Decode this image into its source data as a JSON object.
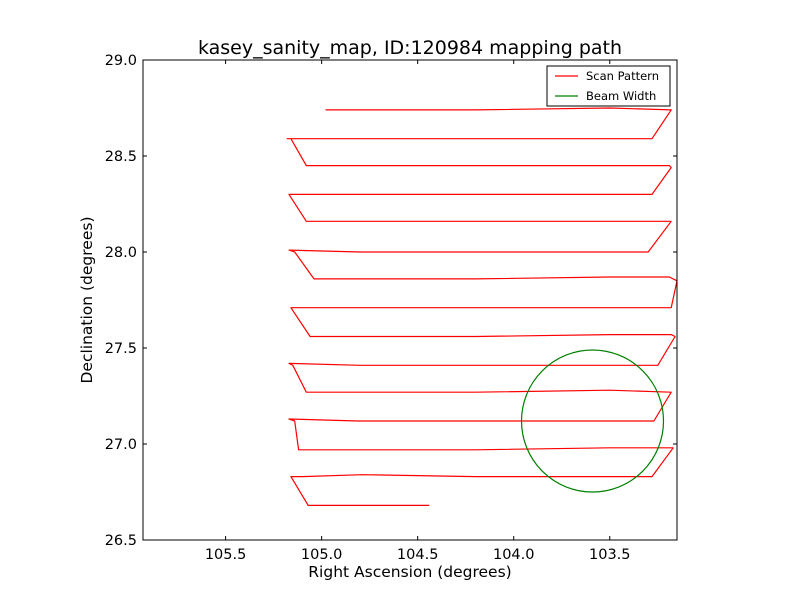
{
  "chart_data": {
    "type": "line",
    "title": "kasey_sanity_map, ID:120984 mapping path",
    "xlabel": "Right Ascension (degrees)",
    "ylabel": "Declination (degrees)",
    "xlim": [
      105.93,
      103.15
    ],
    "ylim": [
      26.5,
      29.0
    ],
    "x_inverted": true,
    "xticks": [
      105.5,
      105.0,
      104.5,
      104.0,
      103.5
    ],
    "xtick_labels": [
      "105.5",
      "105.0",
      "104.5",
      "104.0",
      "103.5"
    ],
    "yticks": [
      26.5,
      27.0,
      27.5,
      28.0,
      28.5,
      29.0
    ],
    "ytick_labels": [
      "26.5",
      "27.0",
      "27.5",
      "28.0",
      "28.5",
      "29.0"
    ],
    "grid": false,
    "legend_position": "top-right",
    "series": [
      {
        "name": "Scan Pattern",
        "color": "#ff0000",
        "points": [
          [
            104.44,
            26.68
          ],
          [
            104.8,
            26.68
          ],
          [
            105.07,
            26.68
          ],
          [
            105.16,
            26.83
          ],
          [
            105.1,
            26.83
          ],
          [
            104.79,
            26.84
          ],
          [
            104.2,
            26.83
          ],
          [
            103.51,
            26.83
          ],
          [
            103.28,
            26.83
          ],
          [
            103.17,
            26.98
          ],
          [
            103.5,
            26.98
          ],
          [
            104.2,
            26.97
          ],
          [
            105.12,
            26.97
          ],
          [
            105.14,
            27.12
          ],
          [
            105.17,
            27.13
          ],
          [
            104.81,
            27.12
          ],
          [
            104.2,
            27.12
          ],
          [
            103.5,
            27.12
          ],
          [
            103.27,
            27.12
          ],
          [
            103.18,
            27.27
          ],
          [
            103.5,
            27.28
          ],
          [
            104.2,
            27.27
          ],
          [
            105.08,
            27.27
          ],
          [
            105.15,
            27.41
          ],
          [
            105.17,
            27.42
          ],
          [
            104.8,
            27.41
          ],
          [
            104.2,
            27.41
          ],
          [
            103.5,
            27.41
          ],
          [
            103.25,
            27.41
          ],
          [
            103.16,
            27.56
          ],
          [
            103.18,
            27.57
          ],
          [
            103.5,
            27.57
          ],
          [
            104.2,
            27.56
          ],
          [
            105.06,
            27.56
          ],
          [
            105.16,
            27.71
          ],
          [
            104.8,
            27.71
          ],
          [
            104.2,
            27.71
          ],
          [
            103.5,
            27.71
          ],
          [
            103.18,
            27.71
          ],
          [
            103.15,
            27.85
          ],
          [
            103.19,
            27.87
          ],
          [
            103.5,
            27.87
          ],
          [
            104.2,
            27.86
          ],
          [
            105.04,
            27.86
          ],
          [
            105.14,
            28.0
          ],
          [
            105.17,
            28.01
          ],
          [
            104.8,
            28.0
          ],
          [
            104.2,
            28.0
          ],
          [
            103.5,
            28.0
          ],
          [
            103.3,
            28.0
          ],
          [
            103.18,
            28.16
          ],
          [
            103.5,
            28.16
          ],
          [
            104.2,
            28.16
          ],
          [
            105.08,
            28.16
          ],
          [
            105.17,
            28.3
          ],
          [
            104.8,
            28.3
          ],
          [
            104.2,
            28.3
          ],
          [
            103.5,
            28.3
          ],
          [
            103.28,
            28.3
          ],
          [
            103.18,
            28.44
          ],
          [
            103.19,
            28.45
          ],
          [
            103.5,
            28.45
          ],
          [
            104.2,
            28.45
          ],
          [
            105.08,
            28.45
          ],
          [
            105.16,
            28.59
          ],
          [
            105.18,
            28.59
          ],
          [
            104.8,
            28.59
          ],
          [
            104.2,
            28.59
          ],
          [
            103.5,
            28.59
          ],
          [
            103.28,
            28.59
          ],
          [
            103.18,
            28.74
          ],
          [
            103.5,
            28.75
          ],
          [
            104.2,
            28.74
          ],
          [
            104.98,
            28.74
          ]
        ]
      },
      {
        "name": "Beam Width",
        "color": "#008000",
        "shape": "circle",
        "center": [
          103.59,
          27.12
        ],
        "radius_dec_degrees": 0.37
      }
    ]
  }
}
